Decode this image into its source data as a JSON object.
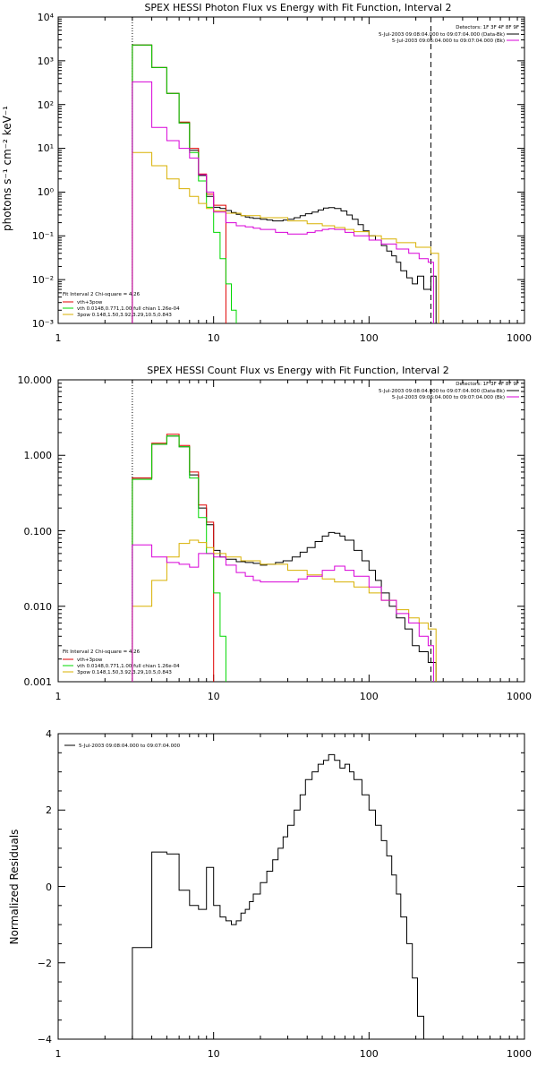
{
  "colors": {
    "black": "#000000",
    "red": "#e00000",
    "green": "#00d800",
    "magenta": "#d800d8",
    "yellow": "#d8b000"
  },
  "panels": [
    {
      "title": "SPEX HESSI Photon Flux vs Energy with Fit Function, Interval 2",
      "ylabel": "photons s⁻¹ cm⁻² keV⁻¹",
      "xticks": [
        "1",
        "10",
        "100",
        "1000"
      ],
      "yticks": [
        "10⁻³",
        "10⁻²",
        "10⁻¹",
        "10⁰",
        "10¹",
        "10²",
        "10³",
        "10⁴"
      ],
      "detectors": "Detectors: 1F 3F 4F 8F 9F",
      "data_legend": [
        "5-Jul-2003 09:08:04.000 to 09:07:04.000 (Data-Bk)",
        "5-Jul-2003 09:06:04.000 to 09:07:04.000 (Bk)"
      ],
      "fit_legend": {
        "header": "Fit Interval 2   Chi-square = 4.26",
        "items": [
          "vth+3pow",
          "vth 0.0148,0.771,1.00  full chian 1.26e-04",
          "3pow 0.148,1.50,3.92,3.29,10.5,0.843"
        ]
      }
    },
    {
      "title": "SPEX HESSI Count Flux vs Energy with Fit Function, Interval 2",
      "xticks": [
        "1",
        "10",
        "100",
        "1000"
      ],
      "yticks": [
        "0.001",
        "0.010",
        "0.100",
        "1.000",
        "10.000"
      ],
      "detectors": "Detectors: 1F 3F 4F 8F 9F",
      "data_legend": [
        "5-Jul-2003 09:08:04.000 to 09:07:04.000 (Data-Bk)",
        "5-Jul-2003 09:06:04.000 to 09:07:04.000 (Bk)"
      ],
      "fit_legend": {
        "header": "Fit Interval 2   Chi-square = 4.26",
        "items": [
          "vth+3pow",
          "vth 0.0148,0.771,1.00  full chian 1.26e-04",
          "3pow 0.148,1.50,3.92,3.29,10.5,0.843"
        ]
      }
    },
    {
      "ylabel": "Normalized Residuals",
      "xticks": [
        "1",
        "10",
        "100",
        "1000"
      ],
      "yticks": [
        "−4",
        "−2",
        "0",
        "2",
        "4"
      ],
      "legend": "5-Jul-2003 09:08:04.000 to 09:07:04.000"
    }
  ],
  "chart_data": [
    {
      "type": "line",
      "title": "SPEX HESSI Photon Flux vs Energy with Fit Function, Interval 2",
      "xlabel": "",
      "ylabel": "photons s⁻¹ cm⁻² keV⁻¹",
      "xscale": "log",
      "yscale": "log",
      "xlim": [
        1,
        1000
      ],
      "ylim": [
        0.001,
        10000
      ],
      "vlines": [
        {
          "x": 3,
          "style": "dotted"
        },
        {
          "x": 250,
          "style": "dashed"
        }
      ],
      "series": [
        {
          "name": "Data-Bk",
          "color": "#000000",
          "x": [
            3,
            3.5,
            4,
            4.5,
            5,
            5.5,
            6,
            6.5,
            7,
            7.5,
            8,
            8.5,
            9,
            9.5,
            10,
            11,
            12,
            13,
            14,
            15,
            16,
            17,
            18,
            20,
            22,
            24,
            26,
            28,
            30,
            33,
            36,
            39,
            43,
            47,
            51,
            55,
            60,
            66,
            72,
            78,
            85,
            92,
            100,
            110,
            120,
            130,
            140,
            150,
            160,
            175,
            190,
            205,
            225,
            250,
            270
          ],
          "y": [
            2300,
            2300,
            700,
            700,
            180,
            180,
            38,
            38,
            9,
            9,
            2.4,
            2.4,
            0.8,
            0.8,
            0.45,
            0.42,
            0.38,
            0.34,
            0.31,
            0.29,
            0.27,
            0.26,
            0.25,
            0.24,
            0.23,
            0.22,
            0.22,
            0.23,
            0.24,
            0.26,
            0.29,
            0.32,
            0.35,
            0.39,
            0.43,
            0.44,
            0.42,
            0.37,
            0.3,
            0.24,
            0.18,
            0.13,
            0.1,
            0.08,
            0.06,
            0.045,
            0.035,
            0.025,
            0.016,
            0.011,
            0.008,
            0.012,
            0.006,
            0.012,
            0.012
          ]
        },
        {
          "name": "vth+3pow",
          "color": "#e00000",
          "x": [
            3,
            3.5,
            4,
            4.5,
            5,
            5.5,
            6,
            6.5,
            7,
            7.5,
            8,
            8.5,
            9,
            9.5,
            10,
            12
          ],
          "y": [
            2300,
            2300,
            700,
            700,
            180,
            180,
            40,
            40,
            10,
            10,
            2.6,
            2.6,
            0.9,
            0.9,
            0.5,
            0.4
          ]
        },
        {
          "name": "vth",
          "color": "#00d800",
          "x": [
            3,
            3.5,
            4,
            4.5,
            5,
            5.5,
            6,
            6.5,
            7,
            7.5,
            8,
            8.5,
            9,
            9.5,
            10,
            11,
            12,
            13,
            14
          ],
          "y": [
            2300,
            2300,
            700,
            700,
            180,
            180,
            38,
            38,
            8,
            8,
            1.8,
            1.8,
            0.45,
            0.45,
            0.12,
            0.03,
            0.008,
            0.002,
            0.001
          ]
        },
        {
          "name": "3pow",
          "color": "#d8b000",
          "x": [
            3,
            3.5,
            4,
            4.5,
            5,
            5.5,
            6,
            6.5,
            7,
            7.5,
            8,
            8.5,
            9,
            9.5,
            10,
            12,
            15,
            20,
            30,
            40,
            50,
            60,
            70,
            80,
            100,
            120,
            150,
            200,
            250,
            280
          ],
          "y": [
            8,
            8,
            4,
            4,
            2,
            2,
            1.2,
            1.2,
            0.8,
            0.8,
            0.55,
            0.55,
            0.42,
            0.42,
            0.37,
            0.33,
            0.29,
            0.26,
            0.22,
            0.19,
            0.17,
            0.155,
            0.14,
            0.125,
            0.1,
            0.085,
            0.07,
            0.055,
            0.04,
            0.03
          ]
        },
        {
          "name": "Bk",
          "color": "#d800d8",
          "x": [
            3,
            3.5,
            4,
            4.5,
            5,
            5.5,
            6,
            6.5,
            7,
            7.5,
            8,
            8.5,
            9,
            9.5,
            10,
            12,
            14,
            16,
            18,
            20,
            25,
            30,
            35,
            40,
            45,
            50,
            55,
            60,
            70,
            80,
            100,
            120,
            150,
            180,
            210,
            240,
            260
          ],
          "y": [
            330,
            330,
            30,
            30,
            15,
            15,
            10,
            10,
            6,
            6,
            2.5,
            2.5,
            1,
            1,
            0.35,
            0.2,
            0.17,
            0.16,
            0.15,
            0.14,
            0.12,
            0.11,
            0.11,
            0.12,
            0.13,
            0.14,
            0.145,
            0.14,
            0.12,
            0.1,
            0.08,
            0.065,
            0.05,
            0.04,
            0.03,
            0.025,
            0.02
          ]
        }
      ]
    },
    {
      "type": "line",
      "title": "SPEX HESSI Count Flux vs Energy with Fit Function, Interval 2",
      "xlabel": "",
      "ylabel": "",
      "xscale": "log",
      "yscale": "log",
      "xlim": [
        1,
        1000
      ],
      "ylim": [
        0.001,
        10
      ],
      "vlines": [
        {
          "x": 3,
          "style": "dotted"
        },
        {
          "x": 250,
          "style": "dashed"
        }
      ],
      "series": [
        {
          "name": "Data-Bk",
          "color": "#000000",
          "x": [
            3,
            3.5,
            4,
            4.5,
            5,
            5.5,
            6,
            6.5,
            7,
            7.5,
            8,
            8.5,
            9,
            9.5,
            10,
            11,
            12,
            14,
            16,
            18,
            20,
            22,
            25,
            28,
            32,
            36,
            40,
            45,
            50,
            55,
            60,
            65,
            70,
            80,
            90,
            100,
            110,
            120,
            135,
            150,
            170,
            190,
            210,
            240,
            270
          ],
          "y": [
            0.5,
            0.5,
            1.4,
            1.4,
            1.8,
            1.8,
            1.3,
            1.3,
            0.55,
            0.55,
            0.2,
            0.2,
            0.12,
            0.12,
            0.055,
            0.045,
            0.042,
            0.039,
            0.038,
            0.037,
            0.035,
            0.036,
            0.038,
            0.04,
            0.045,
            0.052,
            0.06,
            0.072,
            0.085,
            0.095,
            0.093,
            0.085,
            0.075,
            0.055,
            0.04,
            0.03,
            0.022,
            0.015,
            0.01,
            0.007,
            0.005,
            0.003,
            0.0025,
            0.0018,
            0.0015
          ]
        },
        {
          "name": "vth+3pow",
          "color": "#e00000",
          "x": [
            3,
            3.5,
            4,
            4.5,
            5,
            5.5,
            6,
            6.5,
            7,
            7.5,
            8,
            8.5,
            9,
            9.5,
            10
          ],
          "y": [
            0.5,
            0.5,
            1.45,
            1.45,
            1.9,
            1.9,
            1.35,
            1.35,
            0.6,
            0.6,
            0.22,
            0.22,
            0.13,
            0.13,
            0.06
          ]
        },
        {
          "name": "vth",
          "color": "#00d800",
          "x": [
            3,
            3.5,
            4,
            4.5,
            5,
            5.5,
            6,
            6.5,
            7,
            7.5,
            8,
            8.5,
            9,
            9.5,
            10,
            11,
            12
          ],
          "y": [
            0.48,
            0.48,
            1.4,
            1.4,
            1.8,
            1.8,
            1.3,
            1.3,
            0.5,
            0.5,
            0.15,
            0.15,
            0.05,
            0.05,
            0.015,
            0.004,
            0.001
          ]
        },
        {
          "name": "3pow",
          "color": "#d8b000",
          "x": [
            3,
            3.5,
            4,
            4.5,
            5,
            5.5,
            6,
            7,
            8,
            9,
            10,
            12,
            15,
            20,
            30,
            40,
            50,
            60,
            80,
            100,
            120,
            150,
            180,
            210,
            240,
            270
          ],
          "y": [
            0.01,
            0.01,
            0.022,
            0.022,
            0.045,
            0.045,
            0.068,
            0.075,
            0.07,
            0.06,
            0.05,
            0.045,
            0.04,
            0.036,
            0.03,
            0.026,
            0.023,
            0.021,
            0.018,
            0.015,
            0.012,
            0.009,
            0.007,
            0.006,
            0.005,
            0.004
          ]
        },
        {
          "name": "Bk",
          "color": "#d800d8",
          "x": [
            3,
            3.5,
            4,
            4.5,
            5,
            5.5,
            6,
            7,
            8,
            9,
            10,
            12,
            14,
            16,
            18,
            20,
            25,
            30,
            35,
            40,
            50,
            60,
            70,
            80,
            100,
            120,
            150,
            180,
            210,
            240,
            260
          ],
          "y": [
            0.065,
            0.065,
            0.045,
            0.045,
            0.038,
            0.038,
            0.036,
            0.033,
            0.05,
            0.05,
            0.045,
            0.035,
            0.028,
            0.025,
            0.022,
            0.021,
            0.021,
            0.021,
            0.023,
            0.025,
            0.03,
            0.034,
            0.03,
            0.025,
            0.018,
            0.012,
            0.008,
            0.006,
            0.004,
            0.003,
            0.002
          ]
        }
      ]
    },
    {
      "type": "line",
      "title": "",
      "xlabel": "",
      "ylabel": "Normalized Residuals",
      "xscale": "log",
      "yscale": "linear",
      "xlim": [
        1,
        1000
      ],
      "ylim": [
        -4,
        4
      ],
      "series": [
        {
          "name": "5-Jul-2003 09:08:04.000 to 09:07:04.000",
          "color": "#000000",
          "x": [
            3,
            3.5,
            4,
            4.5,
            5,
            5.5,
            6,
            6.5,
            7,
            7.5,
            8,
            8.5,
            9,
            9.5,
            10,
            11,
            12,
            13,
            14,
            15,
            16,
            17,
            18,
            20,
            22,
            24,
            26,
            28,
            30,
            33,
            36,
            39,
            43,
            47,
            51,
            55,
            60,
            65,
            70,
            75,
            80,
            90,
            100,
            110,
            120,
            130,
            140,
            150,
            160,
            175,
            190,
            205,
            225,
            250
          ],
          "y": [
            -1.6,
            -1.6,
            0.9,
            0.9,
            0.85,
            0.85,
            -0.1,
            -0.1,
            -0.5,
            -0.5,
            -0.6,
            -0.6,
            0.5,
            0.5,
            -0.5,
            -0.8,
            -0.9,
            -1.0,
            -0.9,
            -0.7,
            -0.6,
            -0.4,
            -0.2,
            0.1,
            0.4,
            0.7,
            1.0,
            1.3,
            1.6,
            2.0,
            2.4,
            2.8,
            3.0,
            3.2,
            3.3,
            3.45,
            3.3,
            3.1,
            3.2,
            3.0,
            2.8,
            2.4,
            2.0,
            1.6,
            1.2,
            0.8,
            0.3,
            -0.2,
            -0.8,
            -1.5,
            -2.4,
            -3.4,
            -4.0,
            -4.0
          ]
        }
      ]
    }
  ]
}
